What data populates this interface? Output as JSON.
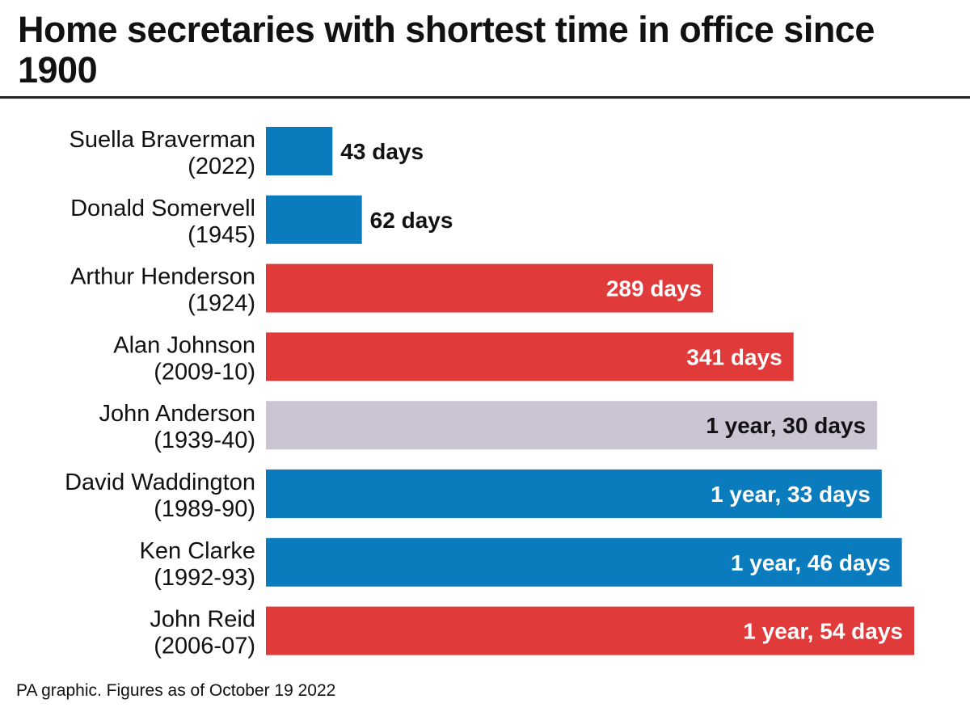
{
  "header": {
    "title": "Home secretaries with shortest time in office since 1900"
  },
  "footer": {
    "source": "PA graphic. Figures as of October 19 2022"
  },
  "chart_data": {
    "type": "bar",
    "orientation": "horizontal",
    "unit": "days",
    "categories": [
      "Suella Braverman (2022)",
      "Donald Somervell (1945)",
      "Arthur Henderson (1924)",
      "Alan Johnson (2009-10)",
      "John Anderson (1939-40)",
      "David Waddington (1989-90)",
      "Ken Clarke (1992-93)",
      "John Reid (2006-07)"
    ],
    "bars": [
      {
        "name": "Suella Braverman",
        "years": "(2022)",
        "value": 43,
        "label": "43 days",
        "party": "conservative"
      },
      {
        "name": "Donald Somervell",
        "years": "(1945)",
        "value": 62,
        "label": "62 days",
        "party": "conservative"
      },
      {
        "name": "Arthur Henderson",
        "years": "(1924)",
        "value": 289,
        "label": "289 days",
        "party": "labour"
      },
      {
        "name": "Alan Johnson",
        "years": "(2009-10)",
        "value": 341,
        "label": "341 days",
        "party": "labour"
      },
      {
        "name": "John Anderson",
        "years": "(1939-40)",
        "value": 395,
        "label": "1 year, 30 days",
        "party": "other"
      },
      {
        "name": "David Waddington",
        "years": "(1989-90)",
        "value": 398,
        "label": "1 year, 33 days",
        "party": "conservative"
      },
      {
        "name": "Ken Clarke",
        "years": "(1992-93)",
        "value": 411,
        "label": "1 year, 46 days",
        "party": "conservative"
      },
      {
        "name": "John Reid",
        "years": "(2006-07)",
        "value": 419,
        "label": "1 year, 54 days",
        "party": "labour"
      }
    ],
    "colors": {
      "conservative": "#0a7bbd",
      "labour": "#e03a3a",
      "other": "#cac4d3"
    },
    "label_colors": {
      "inside_dark_bg": "#ffffff",
      "inside_light_bg": "#111111",
      "outside": "#111111"
    },
    "xlim": [
      0,
      419
    ],
    "grid": false,
    "legend": "none"
  }
}
